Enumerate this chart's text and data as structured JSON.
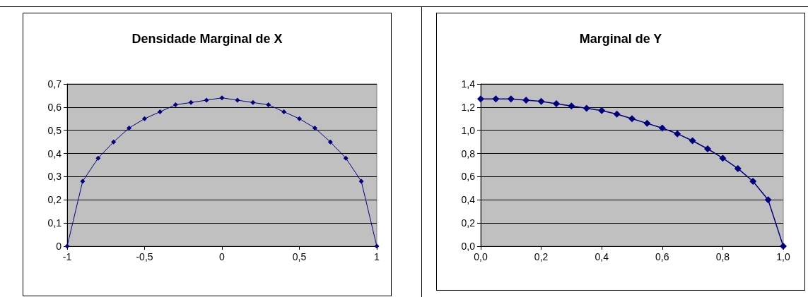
{
  "chart_data": [
    {
      "type": "line",
      "title": "Densidade Marginal de X",
      "x": [
        -1,
        -0.9,
        -0.8,
        -0.7,
        -0.6,
        -0.5,
        -0.4,
        -0.3,
        -0.2,
        -0.1,
        0,
        0.1,
        0.2,
        0.3,
        0.4,
        0.5,
        0.6,
        0.7,
        0.8,
        0.9,
        1
      ],
      "series": [
        {
          "color": "#000080",
          "values": [
            0,
            0.28,
            0.38,
            0.45,
            0.51,
            0.55,
            0.58,
            0.61,
            0.62,
            0.63,
            0.64,
            0.63,
            0.62,
            0.61,
            0.58,
            0.55,
            0.51,
            0.45,
            0.38,
            0.28,
            0
          ]
        }
      ],
      "xlim": [
        -1,
        1
      ],
      "xticks": [
        -1,
        {
          "value": -0.5,
          "label": "-0,5"
        },
        0,
        {
          "value": 0.5,
          "label": "0,5"
        },
        1
      ],
      "ylim": [
        0,
        0.7
      ],
      "yticks": [
        0,
        {
          "value": 0.1,
          "label": "0,1"
        },
        {
          "value": 0.2,
          "label": "0,2"
        },
        {
          "value": 0.3,
          "label": "0,3"
        },
        {
          "value": 0.4,
          "label": "0,4"
        },
        {
          "value": 0.5,
          "label": "0,5"
        },
        {
          "value": 0.6,
          "label": "0,6"
        },
        {
          "value": 0.7,
          "label": "0,7"
        }
      ],
      "grid": "y",
      "marker": "diamond",
      "line_style": "solid"
    },
    {
      "type": "line",
      "title": "Marginal de Y",
      "x": [
        0,
        0.05,
        0.1,
        0.15,
        0.2,
        0.25,
        0.3,
        0.35,
        0.4,
        0.45,
        0.5,
        0.55,
        0.6,
        0.65,
        0.7,
        0.75,
        0.8,
        0.85,
        0.9,
        0.95,
        1
      ],
      "series": [
        {
          "color": "#000080",
          "values": [
            1.27,
            1.27,
            1.27,
            1.26,
            1.25,
            1.23,
            1.21,
            1.19,
            1.17,
            1.14,
            1.1,
            1.06,
            1.02,
            0.97,
            0.91,
            0.84,
            0.76,
            0.67,
            0.56,
            0.4,
            0
          ]
        }
      ],
      "xlim": [
        0,
        1
      ],
      "xticks": [
        {
          "value": 0,
          "label": "0,0"
        },
        {
          "value": 0.2,
          "label": "0,2"
        },
        {
          "value": 0.4,
          "label": "0,4"
        },
        {
          "value": 0.6,
          "label": "0,6"
        },
        {
          "value": 0.8,
          "label": "0,8"
        },
        {
          "value": 1,
          "label": "1,0"
        }
      ],
      "ylim": [
        0,
        1.4
      ],
      "yticks": [
        {
          "value": 0,
          "label": "0,0"
        },
        {
          "value": 0.2,
          "label": "0,2"
        },
        {
          "value": 0.4,
          "label": "0,4"
        },
        {
          "value": 0.6,
          "label": "0,6"
        },
        {
          "value": 0.8,
          "label": "0,8"
        },
        {
          "value": 1,
          "label": "1,0"
        },
        {
          "value": 1.2,
          "label": "1,2"
        },
        {
          "value": 1.4,
          "label": "1,4"
        }
      ],
      "grid": "y",
      "marker": "diamond",
      "line_style": "solid"
    }
  ]
}
